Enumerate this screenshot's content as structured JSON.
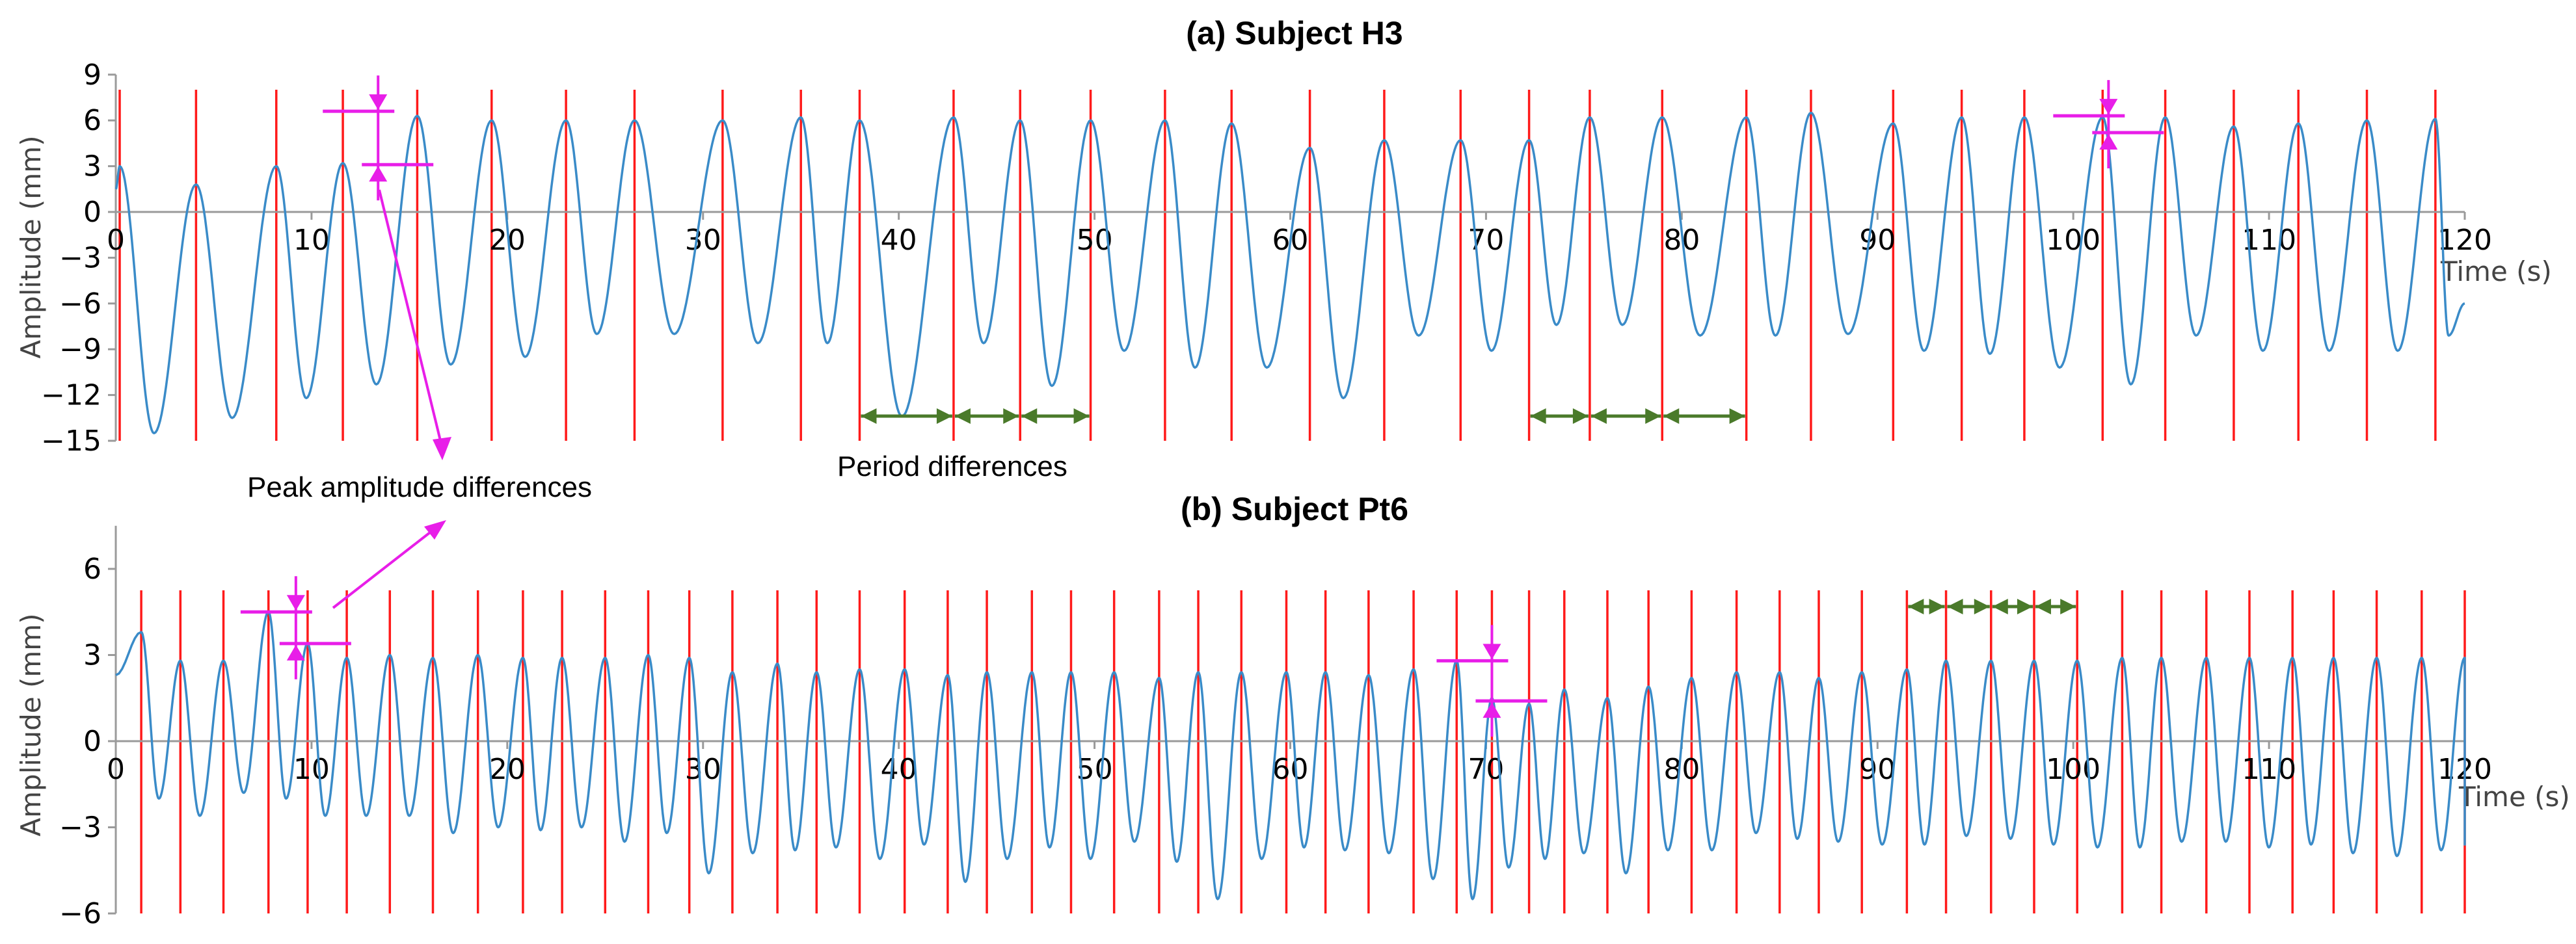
{
  "chart_data": [
    {
      "type": "line",
      "title": "(a) Subject H3",
      "ylabel": "Amplitude (mm)",
      "xlabel": "Time (s)",
      "xlim": [
        0,
        120
      ],
      "ylim": [
        -15,
        9
      ],
      "xticks": [
        0,
        10,
        20,
        30,
        40,
        50,
        60,
        70,
        80,
        90,
        100,
        110,
        120
      ],
      "yticks": [
        -15,
        -12,
        -9,
        -6,
        -3,
        0,
        3,
        6,
        9
      ],
      "xtick_labels": [
        "0",
        "10",
        "20",
        "30",
        "40",
        "50",
        "60",
        "70",
        "80",
        "90",
        "100",
        "110",
        "120"
      ],
      "ytick_labels": [
        "−15",
        "−12",
        "−9",
        "−6",
        "−3",
        "0",
        "3",
        "6",
        "9"
      ],
      "series_color": "#3a8bc8",
      "marker_color": "#ff1a1a",
      "peak_times": [
        0.2,
        4.1,
        8.2,
        11.6,
        15.4,
        19.2,
        23,
        26.5,
        31,
        35,
        38,
        42.8,
        46.2,
        49.8,
        53.6,
        57,
        61,
        64.8,
        68.7,
        72.2,
        75.3,
        79,
        83.3,
        86.6,
        90.8,
        94.3,
        97.5,
        101.5,
        104.7,
        108.2,
        111.5,
        115,
        118.5
      ],
      "peak_values": [
        3,
        1.8,
        3,
        3.2,
        6.3,
        6,
        6,
        6,
        6,
        6.2,
        6,
        6.2,
        6,
        6,
        6,
        5.8,
        4.2,
        4.7,
        4.7,
        4.7,
        6.2,
        6.2,
        6.2,
        6.5,
        5.8,
        6.2,
        6.2,
        6.2,
        6.2,
        5.6,
        5.8,
        6,
        6.1
      ],
      "trough_values": [
        -14.5,
        -13.5,
        -12.2,
        -11.3,
        -10,
        -9.5,
        -8,
        -8,
        -8.6,
        -8.6,
        -13.4,
        -8.6,
        -11.4,
        -9.1,
        -10.2,
        -10.2,
        -12.2,
        -8.1,
        -9.1,
        -7.4,
        -7.4,
        -8.1,
        -8.1,
        -8,
        -9.1,
        -9.3,
        -10.2,
        -11.3,
        -8.1,
        -9.1,
        -9.1,
        -9.1,
        -8.1
      ],
      "end_value": -6,
      "annotations": {
        "amplitude_marks": [
          {
            "x": 13.4,
            "y_low": 3.1,
            "y_high": 6.6
          },
          {
            "x": 101.8,
            "y_low": 5.2,
            "y_high": 6.3
          }
        ],
        "period_arrows": [
          [
            38,
            42.8
          ],
          [
            42.8,
            46.2
          ],
          [
            46.2,
            49.8
          ],
          [
            72.2,
            75.3
          ],
          [
            75.3,
            79
          ],
          [
            79,
            83.3
          ]
        ]
      }
    },
    {
      "type": "line",
      "title": "(b) Subject Pt6",
      "ylabel": "Amplitude (mm)",
      "xlabel": "Time (s)",
      "xlim": [
        0,
        120
      ],
      "ylim": [
        -6,
        7.5
      ],
      "xticks": [
        0,
        10,
        20,
        30,
        40,
        50,
        60,
        70,
        80,
        90,
        100,
        110,
        120
      ],
      "yticks": [
        -6,
        -3,
        0,
        3,
        6
      ],
      "xtick_labels": [
        "0",
        "10",
        "20",
        "30",
        "40",
        "50",
        "60",
        "70",
        "80",
        "90",
        "100",
        "110",
        "120"
      ],
      "ytick_labels": [
        "−6",
        "−3",
        "0",
        "3",
        "6"
      ],
      "series_color": "#3a8bc8",
      "marker_color": "#ff1a1a",
      "peak_times": [
        1.3,
        3.3,
        5.5,
        7.8,
        9.8,
        11.8,
        14,
        16.2,
        18.5,
        20.8,
        22.8,
        25,
        27.2,
        29.3,
        31.5,
        33.8,
        35.8,
        38,
        40.3,
        42.5,
        44.5,
        46.8,
        48.8,
        51,
        53.3,
        55.3,
        57.5,
        59.8,
        61.8,
        64,
        66.3,
        68.5,
        70.3,
        72.2,
        74,
        76.2,
        78.3,
        80.5,
        82.8,
        85,
        87,
        89.2,
        91.5,
        93.5,
        95.8,
        98,
        100.2,
        102.5,
        104.5,
        106.8,
        109,
        111.2,
        113.3,
        115.5,
        117.8,
        120
      ],
      "peak_values": [
        3.8,
        2.8,
        2.8,
        4.5,
        3.4,
        2.9,
        3,
        2.9,
        3,
        2.9,
        2.9,
        2.9,
        3,
        2.9,
        2.4,
        2.7,
        2.4,
        2.5,
        2.5,
        2.3,
        2.4,
        2.4,
        2.4,
        2.4,
        2.2,
        2.4,
        2.4,
        2.4,
        2.4,
        2.3,
        2.5,
        2.8,
        1.5,
        1.3,
        1.8,
        1.5,
        1.9,
        2.2,
        2.4,
        2.4,
        2.2,
        2.4,
        2.5,
        2.8,
        2.8,
        2.8,
        2.8,
        2.9,
        2.9,
        2.9,
        2.9,
        2.9,
        2.9,
        2.9,
        2.9,
        2.9
      ],
      "trough_values": [
        -2,
        -2.6,
        -1.8,
        -2,
        -2.6,
        -2.6,
        -2.6,
        -3.2,
        -3,
        -3.1,
        -3,
        -3.5,
        -3.2,
        -4.6,
        -3.9,
        -3.8,
        -3.7,
        -4.1,
        -3.6,
        -4.9,
        -4.1,
        -3.7,
        -4.1,
        -3.5,
        -4.2,
        -5.5,
        -4.1,
        -3.7,
        -3.8,
        -3.9,
        -4.8,
        -5.5,
        -4.4,
        -4.1,
        -3.9,
        -4.6,
        -3.8,
        -3.8,
        -3.2,
        -3.4,
        -3.5,
        -3.6,
        -3.6,
        -3.3,
        -3.4,
        -3.6,
        -3.7,
        -3.7,
        -3.5,
        -3.5,
        -3.7,
        -3.6,
        -3.9,
        -4.0,
        -3.8,
        -3.6
      ],
      "end_value": 2.9,
      "annotations": {
        "amplitude_marks": [
          {
            "x": 9.2,
            "y_low": 3.4,
            "y_high": 4.5
          },
          {
            "x": 70.3,
            "y_low": 1.4,
            "y_high": 2.8
          }
        ],
        "period_arrows": [
          [
            91.5,
            93.5
          ],
          [
            93.5,
            95.8
          ],
          [
            95.8,
            98
          ],
          [
            98,
            100.2
          ]
        ]
      }
    }
  ],
  "annotations": {
    "peak_label": "Peak amplitude differences",
    "period_label": "Period differences",
    "annotation_color": "#e81ee8",
    "arrow_color": "#4a7a2a"
  }
}
